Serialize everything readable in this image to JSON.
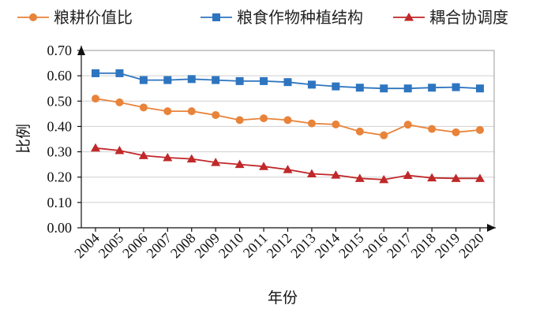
{
  "chart_data": {
    "type": "line",
    "title": "",
    "xlabel": "年份",
    "ylabel": "比例",
    "x": [
      "2004",
      "2005",
      "2006",
      "2007",
      "2008",
      "2009",
      "2010",
      "2011",
      "2012",
      "2013",
      "2014",
      "2015",
      "2016",
      "2017",
      "2018",
      "2019",
      "2020"
    ],
    "ylim": [
      0,
      0.7
    ],
    "yticks": [
      "0.00",
      "0.10",
      "0.20",
      "0.30",
      "0.40",
      "0.50",
      "0.60",
      "0.70"
    ],
    "grid": true,
    "legend_position": "top",
    "series": [
      {
        "name": "粮耕价值比",
        "color": "#e8833a",
        "marker": "circle",
        "values": [
          0.51,
          0.495,
          0.475,
          0.46,
          0.46,
          0.445,
          0.425,
          0.432,
          0.425,
          0.412,
          0.408,
          0.38,
          0.365,
          0.407,
          0.39,
          0.377,
          0.386
        ]
      },
      {
        "name": "粮食作物种植结构",
        "color": "#2e75c0",
        "marker": "square",
        "values": [
          0.61,
          0.61,
          0.583,
          0.583,
          0.587,
          0.583,
          0.579,
          0.579,
          0.575,
          0.565,
          0.558,
          0.553,
          0.55,
          0.55,
          0.553,
          0.555,
          0.55
        ]
      },
      {
        "name": "耦合协调度",
        "color": "#c0282a",
        "marker": "triangle",
        "values": [
          0.315,
          0.305,
          0.285,
          0.277,
          0.272,
          0.258,
          0.25,
          0.242,
          0.23,
          0.213,
          0.208,
          0.195,
          0.19,
          0.207,
          0.197,
          0.195,
          0.195
        ]
      }
    ]
  }
}
